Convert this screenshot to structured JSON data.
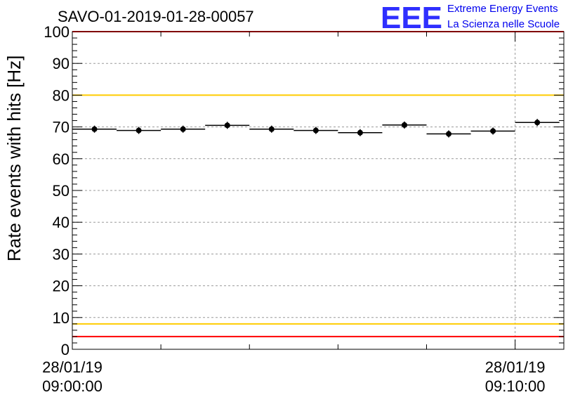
{
  "chart_data": {
    "type": "scatter",
    "title": "SAVO-01-2019-01-28-00057",
    "ylabel": "Rate events with hits [Hz]",
    "xlabel": "",
    "ylim": [
      0,
      100
    ],
    "yticks": [
      0,
      10,
      20,
      30,
      40,
      50,
      60,
      70,
      80,
      90,
      100
    ],
    "ytick_labels": [
      "0",
      "10",
      "20",
      "30",
      "40",
      "50",
      "60",
      "70",
      "80",
      "90",
      "100"
    ],
    "x_ticks": [
      {
        "minute": 0,
        "date": "28/01/19",
        "time": "09:00:00"
      },
      {
        "minute": 10,
        "date": "28/01/19",
        "time": "09:10:00"
      }
    ],
    "x_minor_ticks": [
      2,
      4,
      6,
      8
    ],
    "x_range_minutes": [
      0,
      11.1
    ],
    "grid": true,
    "bin_width_minutes": 1,
    "series": [
      {
        "name": "rate",
        "x": [
          0.5,
          1.5,
          2.5,
          3.5,
          4.5,
          5.5,
          6.5,
          7.5,
          8.5,
          9.5,
          10.5
        ],
        "values": [
          69.3,
          68.9,
          69.3,
          70.5,
          69.3,
          68.9,
          68.2,
          70.6,
          67.8,
          68.7,
          71.4
        ]
      }
    ],
    "reference_lines": [
      {
        "name": "upper-limit-red",
        "value": 100,
        "color": "#ff0000"
      },
      {
        "name": "upper-warning-yellow",
        "value": 80,
        "color": "#ffcc00"
      },
      {
        "name": "lower-warning-yellow",
        "value": 8,
        "color": "#ffcc00"
      },
      {
        "name": "lower-limit-red",
        "value": 4,
        "color": "#ff0000"
      }
    ]
  },
  "logo": {
    "mark": "EEE",
    "line1": "Extreme Energy Events",
    "line2": "La Scienza nelle Scuole"
  }
}
